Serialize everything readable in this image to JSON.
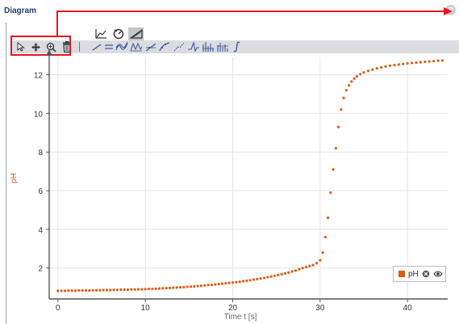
{
  "window": {
    "title": "Diagram",
    "close_glyph": "⊗"
  },
  "view_tabs": [
    {
      "icon": "xy-diagram-icon",
      "active": false
    },
    {
      "icon": "dial-gauge-icon",
      "active": false
    },
    {
      "icon": "diagram-settings-icon",
      "active": true
    }
  ],
  "toolbar": {
    "tools": [
      "select-pointer-icon",
      "pan-move-icon",
      "zoom-icon",
      "delete-icon"
    ],
    "analysis": [
      "tangent-icon",
      "mean-value-icon",
      "smooth-curve-icon",
      "peak-fit-icon",
      "linear-fit-icon",
      "curve-fit-icon",
      "interpolation-icon",
      "derivative-icon",
      "histogram-icon",
      "fft-icon",
      "integral-icon"
    ]
  },
  "colors": {
    "series": "#e05a14",
    "accent": "#e8141c",
    "axis": "#555555",
    "grid": "#e3e3e3",
    "ylabel": "#e05a14"
  },
  "chart_data": {
    "type": "scatter",
    "xlabel": "Time t [s]",
    "ylabel": "pH",
    "xlim": [
      -1,
      44.6
    ],
    "ylim": [
      0.4,
      12.9
    ],
    "xticks": [
      0,
      10,
      20,
      30,
      40
    ],
    "yticks": [
      2,
      4,
      6,
      8,
      10,
      12
    ],
    "grid": true,
    "legend": "bottom-right",
    "series": [
      {
        "name": "pH",
        "color": "#e05a14",
        "x": [
          0,
          0.4,
          0.8,
          1.2,
          1.6,
          2,
          2.4,
          2.8,
          3.2,
          3.6,
          4,
          4.4,
          4.8,
          5.2,
          5.6,
          6,
          6.4,
          6.8,
          7.2,
          7.6,
          8,
          8.4,
          8.8,
          9.2,
          9.6,
          10,
          10.4,
          10.8,
          11.2,
          11.6,
          12,
          12.4,
          12.8,
          13.2,
          13.6,
          14,
          14.4,
          14.8,
          15.2,
          15.6,
          16,
          16.4,
          16.8,
          17.2,
          17.6,
          18,
          18.4,
          18.8,
          19.2,
          19.6,
          20,
          20.4,
          20.8,
          21.2,
          21.6,
          22,
          22.4,
          22.8,
          23.2,
          23.6,
          24,
          24.4,
          24.8,
          25.2,
          25.6,
          26,
          26.4,
          26.8,
          27.2,
          27.6,
          28,
          28.4,
          28.8,
          29.2,
          29.6,
          30,
          30.3,
          30.6,
          30.9,
          31.2,
          31.5,
          31.8,
          32.1,
          32.4,
          32.7,
          33,
          33.3,
          33.6,
          33.9,
          34.2,
          34.6,
          35,
          35.5,
          36,
          36.5,
          37,
          37.5,
          38,
          38.5,
          39,
          39.5,
          40,
          40.5,
          41,
          41.5,
          42,
          42.5,
          43,
          43.5,
          44
        ],
        "y": [
          0.82,
          0.82,
          0.82,
          0.83,
          0.83,
          0.83,
          0.84,
          0.84,
          0.84,
          0.84,
          0.85,
          0.85,
          0.85,
          0.86,
          0.86,
          0.86,
          0.87,
          0.87,
          0.88,
          0.88,
          0.88,
          0.89,
          0.89,
          0.9,
          0.9,
          0.91,
          0.92,
          0.92,
          0.93,
          0.94,
          0.95,
          0.96,
          0.97,
          0.98,
          0.99,
          1.0,
          1.01,
          1.03,
          1.04,
          1.05,
          1.07,
          1.08,
          1.1,
          1.12,
          1.13,
          1.15,
          1.17,
          1.19,
          1.21,
          1.23,
          1.25,
          1.27,
          1.29,
          1.32,
          1.34,
          1.37,
          1.4,
          1.43,
          1.46,
          1.49,
          1.53,
          1.56,
          1.6,
          1.64,
          1.68,
          1.72,
          1.77,
          1.82,
          1.87,
          1.93,
          2.0,
          2.05,
          2.1,
          2.15,
          2.25,
          2.4,
          2.8,
          3.6,
          4.6,
          5.9,
          7.1,
          8.2,
          9.3,
          10.2,
          10.8,
          11.2,
          11.45,
          11.65,
          11.8,
          11.92,
          12.03,
          12.12,
          12.2,
          12.27,
          12.33,
          12.38,
          12.43,
          12.47,
          12.5,
          12.53,
          12.56,
          12.59,
          12.61,
          12.63,
          12.65,
          12.67,
          12.69,
          12.71,
          12.73,
          12.74
        ]
      }
    ]
  }
}
